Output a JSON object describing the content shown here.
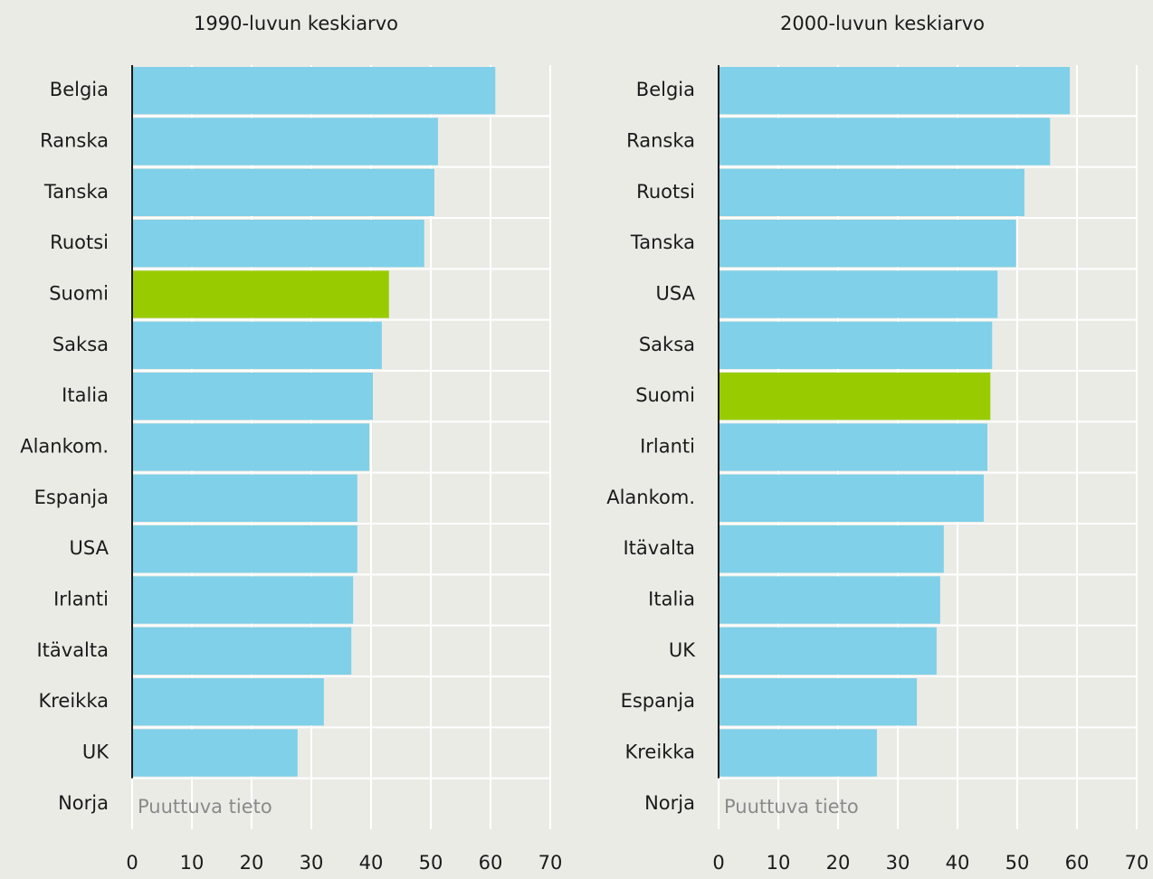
{
  "chart_data": [
    {
      "type": "bar",
      "orientation": "horizontal",
      "title": "1990-luvun keskiarvo",
      "categories": [
        "Belgia",
        "Ranska",
        "Tanska",
        "Ruotsi",
        "Suomi",
        "Saksa",
        "Italia",
        "Alankom.",
        "Espanja",
        "USA",
        "Irlanti",
        "Itävalta",
        "Kreikka",
        "UK",
        "Norja"
      ],
      "values": [
        60.8,
        51.2,
        50.6,
        48.9,
        43.0,
        41.8,
        40.3,
        39.7,
        37.7,
        37.7,
        37.0,
        36.7,
        32.1,
        27.7,
        null
      ],
      "colors": [
        "#7fd0e8",
        "#7fd0e8",
        "#7fd0e8",
        "#7fd0e8",
        "#99cc00",
        "#7fd0e8",
        "#7fd0e8",
        "#7fd0e8",
        "#7fd0e8",
        "#7fd0e8",
        "#7fd0e8",
        "#7fd0e8",
        "#7fd0e8",
        "#7fd0e8",
        "#7fd0e8"
      ],
      "annotation": "Puuttuva tieto",
      "xlim": [
        0,
        70
      ],
      "xticks": [
        0,
        10,
        20,
        30,
        40,
        50,
        60,
        70
      ],
      "grid": true
    },
    {
      "type": "bar",
      "orientation": "horizontal",
      "title": "2000-luvun keskiarvo",
      "categories": [
        "Belgia",
        "Ranska",
        "Ruotsi",
        "Tanska",
        "USA",
        "Saksa",
        "Suomi",
        "Irlanti",
        "Alankom.",
        "Itävalta",
        "Italia",
        "UK",
        "Espanja",
        "Kreikka",
        "Norja"
      ],
      "values": [
        58.8,
        55.5,
        51.2,
        49.8,
        46.7,
        45.8,
        45.5,
        45.0,
        44.4,
        37.7,
        37.1,
        36.5,
        33.2,
        26.5,
        null
      ],
      "colors": [
        "#7fd0e8",
        "#7fd0e8",
        "#7fd0e8",
        "#7fd0e8",
        "#7fd0e8",
        "#7fd0e8",
        "#99cc00",
        "#7fd0e8",
        "#7fd0e8",
        "#7fd0e8",
        "#7fd0e8",
        "#7fd0e8",
        "#7fd0e8",
        "#7fd0e8",
        "#7fd0e8"
      ],
      "annotation": "Puuttuva tieto",
      "xlim": [
        0,
        70
      ],
      "xticks": [
        0,
        10,
        20,
        30,
        40,
        50,
        60,
        70
      ],
      "grid": true
    }
  ]
}
